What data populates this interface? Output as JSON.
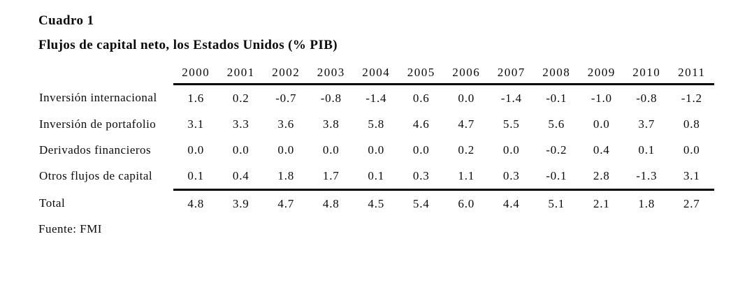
{
  "page": {
    "title": "Cuadro 1",
    "subtitle": "Flujos de capital neto, los Estados Unidos (% PIB)",
    "source": "Fuente: FMI"
  },
  "chart_data": {
    "type": "table",
    "title": "Cuadro 1",
    "subtitle": "Flujos de capital neto, los Estados Unidos (% PIB)",
    "columns": [
      "2000",
      "2001",
      "2002",
      "2003",
      "2004",
      "2005",
      "2006",
      "2007",
      "2008",
      "2009",
      "2010",
      "2011"
    ],
    "rows": [
      {
        "label": "Inversión internacional",
        "values": [
          "1.6",
          "0.2",
          "-0.7",
          "-0.8",
          "-1.4",
          "0.6",
          "0.0",
          "-1.4",
          "-0.1",
          "-1.0",
          "-0.8",
          "-1.2"
        ]
      },
      {
        "label": "Inversión de portafolio",
        "values": [
          "3.1",
          "3.3",
          "3.6",
          "3.8",
          "5.8",
          "4.6",
          "4.7",
          "5.5",
          "5.6",
          "0.0",
          "3.7",
          "0.8"
        ]
      },
      {
        "label": "Derivados financieros",
        "values": [
          "0.0",
          "0.0",
          "0.0",
          "0.0",
          "0.0",
          "0.0",
          "0.2",
          "0.0",
          "-0.2",
          "0.4",
          "0.1",
          "0.0"
        ]
      },
      {
        "label": "Otros flujos de capital",
        "values": [
          "0.1",
          "0.4",
          "1.8",
          "1.7",
          "0.1",
          "0.3",
          "1.1",
          "0.3",
          "-0.1",
          "2.8",
          "-1.3",
          "3.1"
        ]
      }
    ],
    "total_row": {
      "label": "Total",
      "values": [
        "4.8",
        "3.9",
        "4.7",
        "4.8",
        "4.5",
        "5.4",
        "6.0",
        "4.4",
        "5.1",
        "2.1",
        "1.8",
        "2.7"
      ]
    },
    "source": "Fuente: FMI",
    "layout_hints": {
      "text_color": "#000000",
      "rule_color": "#000000",
      "background": "#ffffff"
    }
  }
}
